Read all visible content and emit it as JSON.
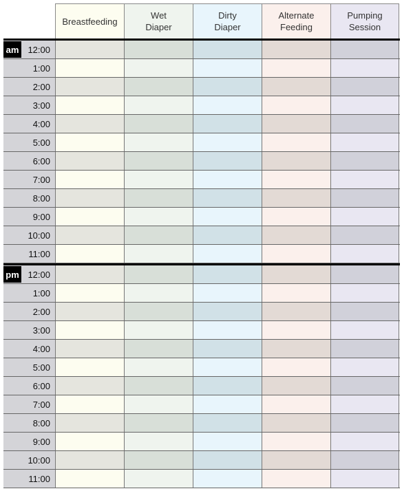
{
  "columns": [
    {
      "label": "Breastfeeding",
      "light": "#fdfdf0",
      "dark": "#e5e5de"
    },
    {
      "label": "Wet\nDiaper",
      "light": "#eff4ee",
      "dark": "#d8dfd8"
    },
    {
      "label": "Dirty\nDiaper",
      "light": "#e8f5fc",
      "dark": "#d1e1e7"
    },
    {
      "label": "Alternate\nFeeding",
      "light": "#fbf0ec",
      "dark": "#e3dad5"
    },
    {
      "label": "Pumping\nSession",
      "light": "#e9e7f2",
      "dark": "#d1d1da"
    }
  ],
  "blocks": [
    {
      "period": "am",
      "times": [
        "12:00",
        "1:00",
        "2:00",
        "3:00",
        "4:00",
        "5:00",
        "6:00",
        "7:00",
        "8:00",
        "9:00",
        "10:00",
        "11:00"
      ]
    },
    {
      "period": "pm",
      "times": [
        "12:00",
        "1:00",
        "2:00",
        "3:00",
        "4:00",
        "5:00",
        "6:00",
        "7:00",
        "8:00",
        "9:00",
        "10:00",
        "11:00"
      ]
    }
  ]
}
